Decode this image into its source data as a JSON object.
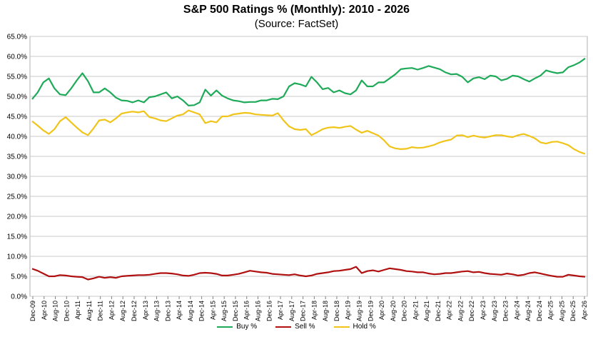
{
  "chart_data": {
    "type": "line",
    "title": "S&P 500 Ratings % (Monthly): 2010 - 2026",
    "subtitle": "(Source: FactSet)",
    "ylim": [
      0,
      65
    ],
    "y_ticks": [
      "0.0%",
      "5.0%",
      "10.0%",
      "15.0%",
      "20.0%",
      "25.0%",
      "30.0%",
      "35.0%",
      "40.0%",
      "45.0%",
      "50.0%",
      "55.0%",
      "60.0%",
      "65.0%"
    ],
    "x_ticks": [
      "Dec-09",
      "Apr-10",
      "Aug-10",
      "Dec-10",
      "Apr-11",
      "Aug-11",
      "Dec-11",
      "Apr-12",
      "Aug-12",
      "Dec-12",
      "Apr-13",
      "Aug-13",
      "Dec-13",
      "Apr-14",
      "Aug-14",
      "Dec-14",
      "Apr-15",
      "Aug-15",
      "Dec-15",
      "Apr-16",
      "Aug-16",
      "Dec-16",
      "Apr-17",
      "Aug-17",
      "Dec-17",
      "Apr-18",
      "Aug-18",
      "Dec-18",
      "Apr-19",
      "Aug-19",
      "Dec-19",
      "Apr-20",
      "Aug-20",
      "Dec-20",
      "Apr-21",
      "Aug-21",
      "Dec-21",
      "Apr-22",
      "Aug-22",
      "Dec-22",
      "Apr-23",
      "Aug-23",
      "Dec-23",
      "Apr-24",
      "Aug-24",
      "Dec-24",
      "Apr-25",
      "Aug-25",
      "Dec-25",
      "Apr-26"
    ],
    "grid": true,
    "legend_position": "bottom",
    "series": [
      {
        "name": "Buy %",
        "color": "#1faa59",
        "values": [
          49.3,
          51.0,
          53.5,
          54.5,
          52.0,
          50.5,
          50.3,
          52.0,
          54.0,
          55.8,
          53.8,
          51.0,
          51.0,
          52.0,
          51.0,
          49.7,
          49.0,
          48.9,
          48.5,
          49.0,
          48.5,
          49.8,
          50.0,
          50.5,
          51.0,
          49.5,
          50.0,
          49.0,
          47.7,
          47.8,
          48.5,
          51.7,
          50.2,
          51.5,
          50.2,
          49.5,
          49.0,
          48.8,
          48.5,
          48.6,
          48.6,
          49.0,
          49.0,
          49.4,
          49.3,
          50.0,
          52.5,
          53.3,
          53.0,
          52.5,
          54.9,
          53.5,
          51.8,
          52.1,
          51.0,
          51.5,
          50.8,
          50.5,
          51.5,
          54.0,
          52.5,
          52.5,
          53.5,
          53.5,
          54.5,
          55.5,
          56.8,
          57.0,
          57.1,
          56.7,
          57.1,
          57.6,
          57.2,
          56.8,
          56.0,
          55.5,
          55.6,
          54.9,
          53.5,
          54.5,
          54.8,
          54.3,
          55.2,
          55.0,
          54.0,
          54.4,
          55.2,
          55.0,
          54.3,
          53.7,
          54.5,
          55.2,
          56.5,
          56.1,
          55.8,
          56.0,
          57.3,
          57.8,
          58.5,
          59.5
        ]
      },
      {
        "name": "Sell %",
        "color": "#b01010",
        "values": [
          6.9,
          6.4,
          5.7,
          5.0,
          5.0,
          5.3,
          5.2,
          5.0,
          4.9,
          4.8,
          4.2,
          4.5,
          4.9,
          4.6,
          4.8,
          4.6,
          5.0,
          5.1,
          5.2,
          5.3,
          5.3,
          5.4,
          5.6,
          5.8,
          5.8,
          5.7,
          5.5,
          5.2,
          5.1,
          5.4,
          5.8,
          5.9,
          5.8,
          5.6,
          5.2,
          5.2,
          5.4,
          5.6,
          6.0,
          6.4,
          6.2,
          6.0,
          5.9,
          5.6,
          5.5,
          5.4,
          5.3,
          5.5,
          5.2,
          5.0,
          5.2,
          5.6,
          5.8,
          6.0,
          6.3,
          6.4,
          6.6,
          6.8,
          7.4,
          5.8,
          6.3,
          6.5,
          6.2,
          6.6,
          7.0,
          6.8,
          6.6,
          6.3,
          6.2,
          6.0,
          6.0,
          5.7,
          5.5,
          5.6,
          5.8,
          5.8,
          6.0,
          6.2,
          6.3,
          6.0,
          6.1,
          5.8,
          5.6,
          5.5,
          5.4,
          5.7,
          5.5,
          5.2,
          5.4,
          5.8,
          6.0,
          5.7,
          5.4,
          5.1,
          4.9,
          4.9,
          5.4,
          5.2,
          5.0,
          4.9
        ]
      },
      {
        "name": "Hold %",
        "color": "#f0c419",
        "values": [
          43.8,
          42.7,
          41.5,
          40.6,
          41.8,
          43.8,
          44.8,
          43.5,
          42.2,
          41.0,
          40.3,
          42.0,
          44.0,
          44.2,
          43.5,
          44.5,
          45.7,
          46.0,
          46.2,
          46.0,
          46.3,
          44.8,
          44.5,
          44.0,
          43.8,
          44.5,
          45.2,
          45.5,
          46.5,
          46.0,
          45.5,
          43.3,
          43.8,
          43.5,
          45.0,
          45.0,
          45.5,
          45.7,
          45.9,
          45.8,
          45.5,
          45.4,
          45.3,
          45.2,
          45.8,
          44.0,
          42.5,
          41.8,
          41.6,
          41.8,
          40.3,
          41.0,
          41.8,
          42.2,
          42.3,
          42.1,
          42.4,
          42.6,
          41.7,
          40.9,
          41.4,
          40.8,
          40.2,
          39.0,
          37.5,
          37.0,
          36.8,
          36.9,
          37.3,
          37.1,
          37.2,
          37.5,
          37.9,
          38.5,
          38.9,
          39.2,
          40.2,
          40.3,
          39.8,
          40.2,
          39.9,
          39.7,
          40.0,
          40.3,
          40.3,
          40.0,
          39.8,
          40.3,
          40.6,
          40.1,
          39.5,
          38.5,
          38.2,
          38.6,
          38.7,
          38.3,
          37.8,
          36.8,
          36.1,
          35.6
        ]
      }
    ]
  }
}
